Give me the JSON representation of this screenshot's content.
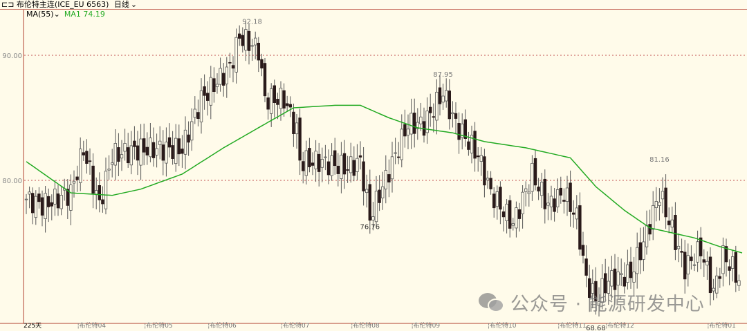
{
  "header": {
    "title": "⊏⊐ 布伦特主连(ICE_EU 6563)",
    "period": "日线",
    "period_icon": "chevron-down-icon"
  },
  "indicator": {
    "label": "MA(55)",
    "value_label": "MA1 74.19"
  },
  "watermark": {
    "text": "公众号 · 能源研发中心",
    "icon": "wechat-icon"
  },
  "colors": {
    "background": "#fffbea",
    "ma": "#22aa22",
    "grid": "#c05050",
    "candle": "#2a1a1a"
  },
  "chart_data": {
    "type": "candlestick",
    "bars_label": "225天",
    "ylim": [
      68,
      94
    ],
    "yticks": [
      {
        "v": 80,
        "label": "80.00"
      },
      {
        "v": 90,
        "label": "90.00"
      }
    ],
    "xticks": [
      {
        "i": 16,
        "label": "布伦特04"
      },
      {
        "i": 37,
        "label": "布伦特05"
      },
      {
        "i": 57,
        "label": "布伦特06"
      },
      {
        "i": 80,
        "label": "布伦特07"
      },
      {
        "i": 102,
        "label": "布伦特08"
      },
      {
        "i": 121,
        "label": "布伦特09"
      },
      {
        "i": 145,
        "label": "布伦特10"
      },
      {
        "i": 167,
        "label": "布伦特11"
      },
      {
        "i": 182,
        "label": "布伦特12"
      },
      {
        "i": 214,
        "label": "布伦特01"
      }
    ],
    "annotations": [
      {
        "i": 71,
        "v": 92.18,
        "label": "92.18",
        "pos": "above"
      },
      {
        "i": 131,
        "v": 87.95,
        "label": "87.95",
        "pos": "above"
      },
      {
        "i": 108,
        "v": 76.76,
        "label": "76.76",
        "pos": "below"
      },
      {
        "i": 199,
        "v": 81.16,
        "label": "81.16",
        "pos": "above"
      },
      {
        "i": 179,
        "v": 68.68,
        "label": "68.68",
        "pos": "below"
      }
    ],
    "close_keypoints": [
      [
        0,
        78.5
      ],
      [
        5,
        78
      ],
      [
        14,
        79
      ],
      [
        18,
        82.5
      ],
      [
        23,
        78
      ],
      [
        27,
        82
      ],
      [
        36,
        82.5
      ],
      [
        49,
        82.5
      ],
      [
        55,
        86.5
      ],
      [
        64,
        89
      ],
      [
        67,
        91.5
      ],
      [
        73,
        90.5
      ],
      [
        75,
        86.5
      ],
      [
        81,
        86.5
      ],
      [
        85,
        84
      ],
      [
        86,
        81.5
      ],
      [
        92,
        81.5
      ],
      [
        101,
        81
      ],
      [
        105,
        81.5
      ],
      [
        108,
        77
      ],
      [
        112,
        79.5
      ],
      [
        116,
        82
      ],
      [
        120,
        84.5
      ],
      [
        125,
        84.5
      ],
      [
        131,
        87
      ],
      [
        135,
        84.5
      ],
      [
        142,
        82
      ],
      [
        146,
        79
      ],
      [
        153,
        76.5
      ],
      [
        159,
        80.5
      ],
      [
        164,
        78
      ],
      [
        169,
        79
      ],
      [
        173,
        77
      ],
      [
        176,
        72
      ],
      [
        179,
        70.5
      ],
      [
        183,
        72
      ],
      [
        190,
        72.5
      ],
      [
        194,
        75
      ],
      [
        199,
        79
      ],
      [
        203,
        76
      ],
      [
        207,
        73
      ],
      [
        212,
        74.5
      ],
      [
        216,
        71
      ],
      [
        219,
        74
      ],
      [
        222,
        73
      ],
      [
        225,
        71.5
      ]
    ],
    "ma_keypoints": [
      [
        0,
        81.5
      ],
      [
        14,
        79
      ],
      [
        27,
        78.8
      ],
      [
        36,
        79.3
      ],
      [
        49,
        80.5
      ],
      [
        62,
        82.6
      ],
      [
        75,
        84.5
      ],
      [
        84,
        85.8
      ],
      [
        97,
        86
      ],
      [
        105,
        86
      ],
      [
        114,
        85
      ],
      [
        123,
        84.2
      ],
      [
        134,
        83.8
      ],
      [
        144,
        83.1
      ],
      [
        157,
        82.6
      ],
      [
        171,
        81.8
      ],
      [
        179,
        79.5
      ],
      [
        188,
        77.6
      ],
      [
        196,
        76.2
      ],
      [
        210,
        75.4
      ],
      [
        218,
        74.7
      ],
      [
        225,
        74.2
      ]
    ]
  }
}
